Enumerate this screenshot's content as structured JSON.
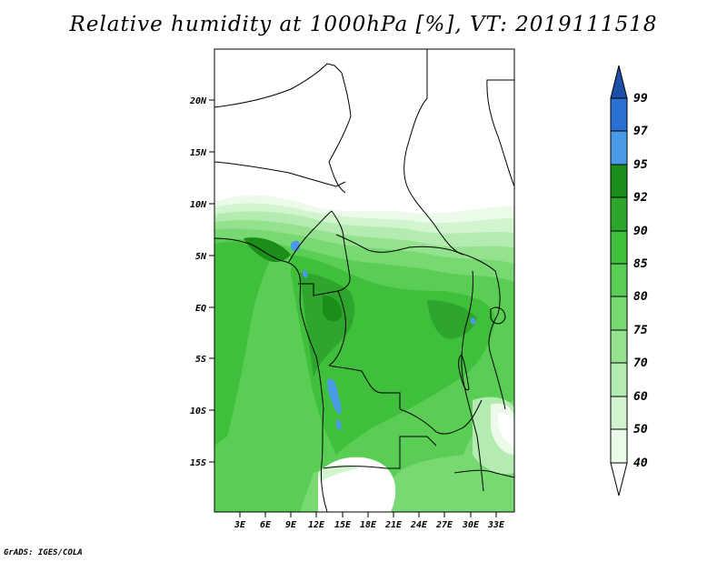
{
  "title": "Relative humidity at 1000hPa [%], VT: 2019111518",
  "credit": "GrADS: IGES/COLA",
  "map": {
    "lat_labels": [
      "20N",
      "15N",
      "10N",
      "5N",
      "EQ",
      "5S",
      "10S",
      "15S"
    ],
    "lon_labels": [
      "3E",
      "6E",
      "9E",
      "12E",
      "15E",
      "18E",
      "21E",
      "24E",
      "27E",
      "30E",
      "33E"
    ]
  },
  "colorbar": {
    "labels": [
      "40",
      "50",
      "60",
      "70",
      "75",
      "80",
      "85",
      "90",
      "92",
      "95",
      "97",
      "99"
    ],
    "colors": {
      "lt40": "#ffffff",
      "40-50": "#ecfaea",
      "50-60": "#d2f4cf",
      "60-70": "#b4ebb0",
      "70-75": "#95e28e",
      "75-80": "#78d872",
      "80-85": "#5acd55",
      "85-90": "#3fbf3c",
      "90-92": "#2ea52c",
      "92-95": "#1a8e18",
      "95-97": "#4b9ae6",
      "97-99": "#2a70d2",
      "gt99": "#1e4fa8"
    }
  }
}
